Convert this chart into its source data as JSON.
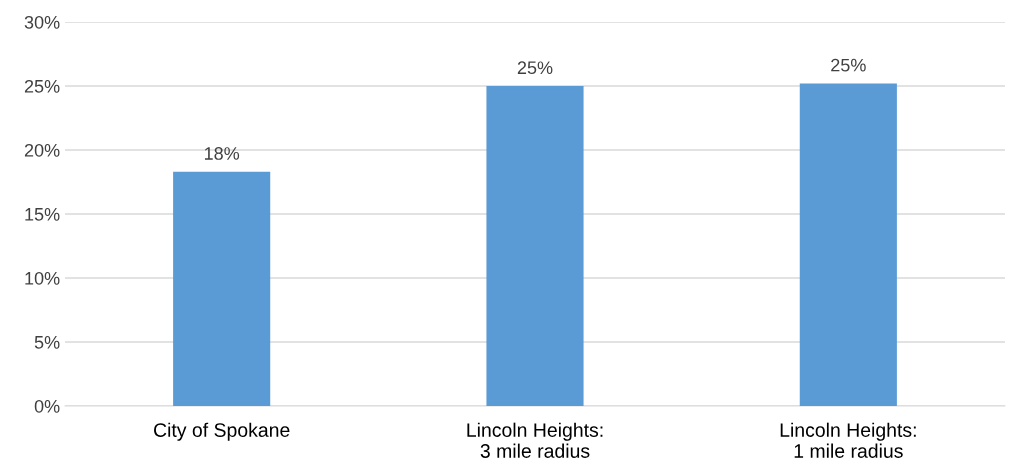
{
  "chart_data": {
    "type": "bar",
    "categories": [
      "City of Spokane",
      "Lincoln Heights:\n3 mile radius",
      "Lincoln Heights:\n1 mile radius"
    ],
    "values": [
      18.3,
      25.0,
      25.2
    ],
    "value_labels": [
      "18%",
      "25%",
      "25%"
    ],
    "color": "#5b9bd5",
    "ylim": [
      0,
      30
    ],
    "yticks": [
      {
        "value": 0,
        "label": "0%"
      },
      {
        "value": 5,
        "label": "5%"
      },
      {
        "value": 10,
        "label": "10%"
      },
      {
        "value": 15,
        "label": "15%"
      },
      {
        "value": 20,
        "label": "20%"
      },
      {
        "value": 25,
        "label": "25%"
      },
      {
        "value": 30,
        "label": "30%"
      }
    ],
    "grid": "y"
  }
}
